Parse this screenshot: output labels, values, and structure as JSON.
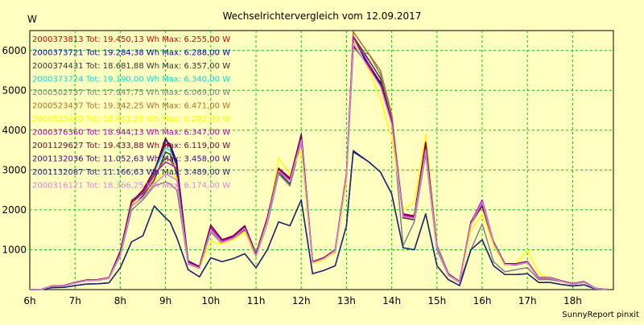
{
  "chart_data": {
    "type": "line",
    "title": "Wechselrichtervergleich vom 12.09.2017",
    "ylabel": "W",
    "xlabel": "",
    "credit": "SunnyReport pinxit",
    "xlim": [
      6.0,
      18.9
    ],
    "ylim": [
      0,
      6500
    ],
    "yticks": [
      1000,
      2000,
      3000,
      4000,
      5000,
      6000
    ],
    "xticks": [
      "6h",
      "7h",
      "8h",
      "9h",
      "10h",
      "11h",
      "12h",
      "13h",
      "14h",
      "15h",
      "16h",
      "17h",
      "18h"
    ],
    "x_hours": [
      6.0,
      6.25,
      6.5,
      6.75,
      7.0,
      7.25,
      7.5,
      7.75,
      8.0,
      8.25,
      8.5,
      8.75,
      9.0,
      9.1,
      9.25,
      9.5,
      9.75,
      10.0,
      10.25,
      10.5,
      10.75,
      11.0,
      11.25,
      11.5,
      11.75,
      12.0,
      12.25,
      12.5,
      12.75,
      13.0,
      13.15,
      13.5,
      13.75,
      14.0,
      14.25,
      14.5,
      14.75,
      15.0,
      15.25,
      15.5,
      15.75,
      16.0,
      16.25,
      16.5,
      16.75,
      17.0,
      17.25,
      17.5,
      17.75,
      18.0,
      18.25,
      18.5,
      18.75
    ],
    "grid": true,
    "legend_position": "top-left, inside plot",
    "series": [
      {
        "name": "2000373813",
        "label": "2000373813 Tot: 19.450,13 Wh Max: 6.255,00 W",
        "color": "#d40000",
        "values": [
          0,
          5,
          90,
          100,
          180,
          240,
          250,
          300,
          960,
          2200,
          2500,
          3000,
          3650,
          3600,
          3100,
          700,
          580,
          1600,
          1250,
          1350,
          1600,
          900,
          1800,
          3050,
          2800,
          3850,
          700,
          800,
          1000,
          2900,
          6255,
          5600,
          5200,
          4200,
          1900,
          1850,
          3700,
          1100,
          400,
          200,
          1700,
          2100,
          1200,
          650,
          650,
          700,
          300,
          300,
          220,
          150,
          200,
          30,
          10
        ]
      },
      {
        "name": "2000373721",
        "label": "2000373721 Tot: 19.284,38 Wh Max: 6.288,00 W",
        "color": "#0000c8",
        "values": [
          0,
          5,
          90,
          100,
          180,
          240,
          250,
          300,
          950,
          2200,
          2450,
          2950,
          3750,
          3650,
          3200,
          720,
          580,
          1600,
          1250,
          1350,
          1600,
          900,
          1800,
          3000,
          2750,
          3900,
          700,
          800,
          1000,
          2900,
          6288,
          5600,
          5150,
          4200,
          1850,
          1800,
          3600,
          1100,
          400,
          200,
          1700,
          2150,
          1200,
          650,
          650,
          700,
          300,
          300,
          220,
          150,
          200,
          30,
          10
        ]
      },
      {
        "name": "2000374431",
        "label": "2000374431 Tot: 18.681,88 Wh Max: 6.357,00 W",
        "color": "#333333",
        "values": [
          0,
          5,
          85,
          95,
          170,
          230,
          240,
          290,
          900,
          2100,
          2350,
          2750,
          3450,
          3400,
          2900,
          660,
          540,
          1500,
          1180,
          1300,
          1500,
          850,
          1700,
          2950,
          2650,
          3800,
          680,
          780,
          950,
          2800,
          6357,
          5750,
          5300,
          4300,
          1800,
          1750,
          3550,
          1050,
          380,
          190,
          1650,
          2100,
          1150,
          620,
          620,
          680,
          280,
          280,
          210,
          140,
          190,
          25,
          10
        ]
      },
      {
        "name": "2000373724",
        "label": "2000373724 Tot: 19.190,00 Wh Max: 6.340,00 W",
        "color": "#00e0e0",
        "values": [
          0,
          5,
          90,
          100,
          180,
          240,
          250,
          300,
          960,
          2250,
          2450,
          2950,
          3550,
          3500,
          3100,
          710,
          570,
          1600,
          1240,
          1340,
          1590,
          890,
          1780,
          3040,
          2780,
          3820,
          690,
          790,
          990,
          2880,
          6340,
          5650,
          5200,
          4250,
          1880,
          1830,
          3650,
          1090,
          390,
          195,
          1690,
          2120,
          1190,
          640,
          640,
          690,
          290,
          290,
          215,
          145,
          195,
          30,
          10
        ]
      },
      {
        "name": "2000502737",
        "label": "2000502737 Tot: 17.947,75 Wh Max: 6.069,00 W",
        "color": "#808080",
        "values": [
          0,
          5,
          80,
          90,
          165,
          220,
          230,
          280,
          850,
          2000,
          2250,
          2600,
          2700,
          2650,
          2500,
          640,
          530,
          1450,
          1150,
          1270,
          1450,
          830,
          1650,
          2900,
          2600,
          3700,
          670,
          770,
          930,
          2750,
          6069,
          5900,
          5400,
          4350,
          1100,
          1700,
          3400,
          1000,
          360,
          180,
          1000,
          1650,
          700,
          450,
          500,
          550,
          250,
          250,
          200,
          130,
          180,
          25,
          10
        ]
      },
      {
        "name": "2000523437",
        "label": "2000523437 Tot: 19.342,25 Wh Max: 6.471,00 W",
        "color": "#b07020",
        "values": [
          0,
          5,
          90,
          100,
          180,
          240,
          250,
          300,
          950,
          2250,
          2400,
          2850,
          3300,
          3250,
          3000,
          700,
          570,
          1550,
          1230,
          1330,
          1580,
          880,
          1770,
          3000,
          2750,
          3800,
          690,
          790,
          990,
          2870,
          6471,
          5900,
          5500,
          4400,
          1850,
          1800,
          3600,
          1080,
          390,
          190,
          1680,
          2100,
          1180,
          630,
          640,
          690,
          290,
          290,
          215,
          145,
          195,
          30,
          10
        ]
      },
      {
        "name": "2000523439",
        "label": "2000523439 Tot: 18.913,25 Wh Max: 6.282,00 W",
        "color": "#ffff00",
        "values": [
          0,
          5,
          85,
          95,
          175,
          230,
          240,
          290,
          900,
          2150,
          2300,
          2700,
          3000,
          2950,
          2800,
          670,
          550,
          1200,
          1150,
          1250,
          1450,
          850,
          1700,
          3300,
          2900,
          3500,
          650,
          750,
          950,
          2700,
          6282,
          5500,
          4800,
          3800,
          2000,
          2200,
          3900,
          1100,
          380,
          190,
          1500,
          1900,
          1100,
          600,
          650,
          1000,
          400,
          300,
          200,
          140,
          190,
          25,
          10
        ]
      },
      {
        "name": "2000376360",
        "label": "2000376360 Tot: 18.944,13 Wh Max: 6.347,00 W",
        "color": "#c000c0",
        "values": [
          0,
          5,
          88,
          98,
          178,
          238,
          248,
          298,
          940,
          2180,
          2420,
          2900,
          3200,
          3150,
          3050,
          690,
          560,
          1560,
          1220,
          1320,
          1570,
          870,
          1760,
          3020,
          2760,
          3800,
          690,
          790,
          990,
          2880,
          6347,
          5650,
          5200,
          4250,
          1870,
          1820,
          3600,
          1090,
          390,
          195,
          1690,
          2250,
          1190,
          640,
          640,
          690,
          290,
          290,
          215,
          145,
          195,
          30,
          10
        ]
      },
      {
        "name": "2001129627",
        "label": "2001129627 Tot: 19.433,88 Wh Max: 6.119,00 W",
        "color": "#800040",
        "values": [
          0,
          5,
          90,
          100,
          180,
          240,
          250,
          300,
          960,
          2200,
          2480,
          2980,
          3800,
          3600,
          3100,
          710,
          575,
          1620,
          1250,
          1350,
          1600,
          900,
          1800,
          3040,
          2790,
          3880,
          700,
          800,
          1000,
          2900,
          6119,
          5600,
          5200,
          4200,
          1900,
          1850,
          3700,
          1100,
          400,
          200,
          1700,
          2100,
          1200,
          650,
          650,
          700,
          300,
          300,
          220,
          150,
          200,
          30,
          10
        ]
      },
      {
        "name": "2001132036",
        "label": "2001132036 Tot: 11.052,63 Wh Max: 3.458,00 W",
        "color": "#4b0082",
        "values": [
          0,
          3,
          50,
          55,
          100,
          140,
          145,
          170,
          550,
          1200,
          1350,
          2100,
          1800,
          1700,
          1300,
          500,
          320,
          800,
          700,
          780,
          900,
          550,
          1000,
          1700,
          1600,
          2250,
          400,
          480,
          600,
          1600,
          3458,
          3200,
          2950,
          2400,
          1050,
          1000,
          1900,
          600,
          250,
          100,
          1000,
          1250,
          600,
          380,
          380,
          400,
          180,
          180,
          130,
          90,
          120,
          15,
          5
        ]
      },
      {
        "name": "2001132087",
        "label": "2001132087 Tot: 11.166,63 Wh Max: 3.489,00 W",
        "color": "#1a2a70",
        "values": [
          0,
          3,
          50,
          55,
          100,
          140,
          145,
          170,
          550,
          1200,
          1350,
          2100,
          1800,
          1700,
          1300,
          500,
          320,
          800,
          700,
          780,
          900,
          550,
          1000,
          1700,
          1600,
          2250,
          400,
          480,
          600,
          1600,
          3489,
          3200,
          2950,
          2400,
          1050,
          1000,
          1900,
          600,
          250,
          100,
          1000,
          1250,
          600,
          380,
          380,
          400,
          180,
          180,
          130,
          90,
          120,
          15,
          5
        ]
      },
      {
        "name": "2000316121",
        "label": "2000316121 Tot: 18.366,25 Wh Max: 6.174,00 W",
        "color": "#e080e0",
        "values": [
          0,
          5,
          85,
          95,
          170,
          230,
          240,
          290,
          880,
          2100,
          2300,
          2650,
          2900,
          2850,
          2750,
          660,
          540,
          1500,
          1180,
          1290,
          1530,
          850,
          1730,
          2980,
          2720,
          3750,
          680,
          780,
          980,
          2850,
          6174,
          5550,
          5100,
          4150,
          1830,
          1780,
          3500,
          1070,
          380,
          190,
          1650,
          2200,
          1170,
          630,
          630,
          680,
          290,
          290,
          210,
          140,
          190,
          25,
          10
        ]
      }
    ]
  }
}
